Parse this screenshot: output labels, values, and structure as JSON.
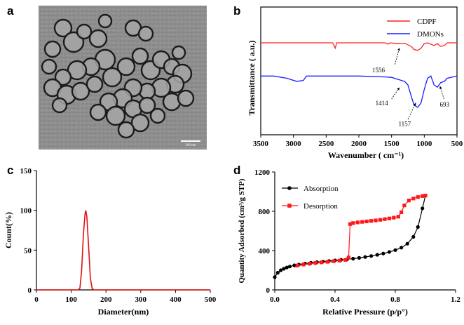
{
  "panels": {
    "a": "a",
    "b": "b",
    "c": "c",
    "d": "d"
  },
  "tem": {
    "scale_bar_label": "100 nm",
    "background_color": "#8c8c8c"
  },
  "chart_data": [
    {
      "id": "b",
      "type": "line",
      "xlabel": "Wavenumber ( cm⁻¹)",
      "ylabel": "Transmittance ( a.u.)",
      "xlim": [
        3500,
        500
      ],
      "x_reversed": true,
      "x_ticks": [
        3500,
        3000,
        2500,
        2000,
        1500,
        1000,
        500
      ],
      "y_ticks_shown": false,
      "legend_position": "top-right",
      "series": [
        {
          "name": "CDPF",
          "color": "#ff2020",
          "offset_level": 0.72,
          "points": [
            [
              3500,
              0.0
            ],
            [
              3000,
              0.0
            ],
            [
              2700,
              0.0
            ],
            [
              2400,
              0.0
            ],
            [
              2360,
              -0.12
            ],
            [
              2340,
              0.0
            ],
            [
              2000,
              0.0
            ],
            [
              1600,
              0.0
            ],
            [
              1556,
              -0.03
            ],
            [
              1520,
              0.0
            ],
            [
              1400,
              -0.02
            ],
            [
              1300,
              -0.01
            ],
            [
              1200,
              -0.08
            ],
            [
              1157,
              -0.15
            ],
            [
              1100,
              -0.17
            ],
            [
              1050,
              -0.12
            ],
            [
              1000,
              -0.02
            ],
            [
              950,
              0.0
            ],
            [
              900,
              -0.03
            ],
            [
              850,
              -0.06
            ],
            [
              800,
              -0.02
            ],
            [
              750,
              -0.08
            ],
            [
              693,
              -0.06
            ],
            [
              650,
              0.0
            ],
            [
              500,
              0.0
            ]
          ]
        },
        {
          "name": "DMONs",
          "color": "#1a1aff",
          "offset_level": 0.46,
          "points": [
            [
              3500,
              0.0
            ],
            [
              3300,
              0.0
            ],
            [
              3100,
              -0.05
            ],
            [
              2950,
              -0.12
            ],
            [
              2850,
              -0.1
            ],
            [
              2800,
              0.0
            ],
            [
              2700,
              0.0
            ],
            [
              2000,
              0.0
            ],
            [
              1600,
              -0.02
            ],
            [
              1500,
              -0.03
            ],
            [
              1414,
              -0.07
            ],
            [
              1300,
              -0.12
            ],
            [
              1250,
              -0.2
            ],
            [
              1200,
              -0.45
            ],
            [
              1157,
              -0.65
            ],
            [
              1100,
              -0.7
            ],
            [
              1050,
              -0.6
            ],
            [
              1000,
              -0.3
            ],
            [
              950,
              -0.05
            ],
            [
              900,
              0.0
            ],
            [
              850,
              -0.2
            ],
            [
              800,
              -0.25
            ],
            [
              750,
              -0.15
            ],
            [
              693,
              -0.12
            ],
            [
              650,
              -0.05
            ],
            [
              500,
              0.0
            ]
          ]
        }
      ],
      "annotations": [
        {
          "text": "1556",
          "x": 1556
        },
        {
          "text": "1414",
          "x": 1414
        },
        {
          "text": "1157",
          "x": 1157
        },
        {
          "text": "693",
          "x": 693
        }
      ]
    },
    {
      "id": "c",
      "type": "line",
      "xlabel": "Diameter(nm)",
      "ylabel": "Count(%)",
      "xlim": [
        0,
        500
      ],
      "ylim": [
        0,
        150
      ],
      "x_ticks": [
        0,
        100,
        200,
        300,
        400,
        500
      ],
      "y_ticks": [
        0,
        50,
        100,
        150
      ],
      "series": [
        {
          "name": "",
          "color": "#e01010",
          "x": [
            0,
            120,
            125,
            130,
            135,
            140,
            142,
            145,
            150,
            155,
            160,
            165,
            500
          ],
          "y": [
            0,
            0,
            2,
            25,
            70,
            96,
            100,
            92,
            55,
            15,
            2,
            0,
            0
          ]
        }
      ]
    },
    {
      "id": "d",
      "type": "line",
      "xlabel": "Relative Pressure (p/p°)",
      "ylabel": "Quantity Adsorbed (cm³/g STP)",
      "xlim": [
        0.0,
        1.2
      ],
      "ylim": [
        0,
        1200
      ],
      "x_ticks": [
        0.0,
        0.4,
        0.8,
        1.2
      ],
      "y_ticks": [
        0,
        400,
        800,
        1200
      ],
      "legend_position": "top-left",
      "series": [
        {
          "name": "Absorption",
          "color": "#000000",
          "marker": "circle",
          "x": [
            0.0,
            0.02,
            0.04,
            0.06,
            0.08,
            0.1,
            0.13,
            0.16,
            0.2,
            0.24,
            0.28,
            0.32,
            0.36,
            0.4,
            0.44,
            0.48,
            0.52,
            0.56,
            0.6,
            0.64,
            0.68,
            0.72,
            0.76,
            0.8,
            0.84,
            0.88,
            0.92,
            0.95,
            0.98,
            1.0
          ],
          "y": [
            130,
            175,
            200,
            215,
            228,
            238,
            250,
            258,
            268,
            276,
            282,
            288,
            294,
            300,
            306,
            312,
            318,
            326,
            335,
            345,
            357,
            370,
            386,
            405,
            430,
            470,
            540,
            640,
            830,
            960
          ]
        },
        {
          "name": "Desorption",
          "color": "#ff1a1a",
          "marker": "square",
          "x": [
            1.0,
            0.98,
            0.95,
            0.92,
            0.89,
            0.86,
            0.84,
            0.82,
            0.79,
            0.76,
            0.73,
            0.7,
            0.67,
            0.64,
            0.61,
            0.58,
            0.55,
            0.52,
            0.5,
            0.49,
            0.47,
            0.43,
            0.39,
            0.35,
            0.31,
            0.27,
            0.23,
            0.19,
            0.15
          ],
          "y": [
            960,
            955,
            945,
            930,
            910,
            860,
            790,
            745,
            735,
            727,
            720,
            713,
            707,
            702,
            697,
            692,
            687,
            680,
            670,
            330,
            305,
            298,
            292,
            286,
            280,
            274,
            267,
            258,
            248
          ]
        }
      ]
    }
  ]
}
